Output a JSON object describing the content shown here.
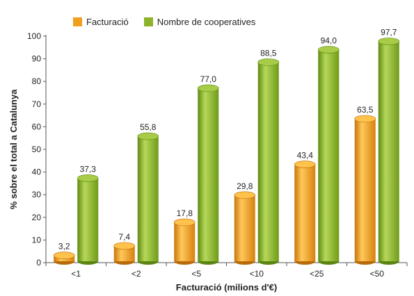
{
  "chart_data": {
    "type": "bar",
    "title": "",
    "xlabel": "Facturació (milions d'€)",
    "ylabel": "% sobre el total a Catalunya",
    "categories": [
      "<1",
      "<2",
      "<5",
      "<10",
      "<25",
      "<50"
    ],
    "series": [
      {
        "name": "Facturació",
        "color": "#f0a020",
        "values": [
          3.2,
          7.4,
          17.8,
          29.8,
          43.4,
          63.5
        ],
        "labels": [
          "3,2",
          "7,4",
          "17,8",
          "29,8",
          "43,4",
          "63,5"
        ]
      },
      {
        "name": "Nombre de cooperatives",
        "color": "#8cb32a",
        "values": [
          37.3,
          55.8,
          77.0,
          88.5,
          94.0,
          97.7
        ],
        "labels": [
          "37,3",
          "55,8",
          "77,0",
          "88,5",
          "94,0",
          "97,7"
        ]
      }
    ],
    "ylim": [
      0,
      100
    ],
    "yticks": [
      "0",
      "10",
      "20",
      "30",
      "40",
      "50",
      "60",
      "70",
      "80",
      "90",
      "100"
    ],
    "legend_position": "top-left",
    "grid": false
  }
}
